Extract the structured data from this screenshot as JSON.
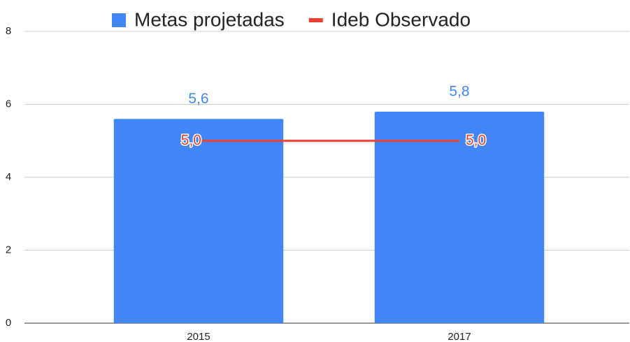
{
  "chart_data": {
    "type": "combo",
    "categories": [
      "2015",
      "2017"
    ],
    "series": [
      {
        "name": "Metas projetadas",
        "type": "bar",
        "color": "#4285f4",
        "values": [
          5.6,
          5.8
        ],
        "value_labels": [
          "5,6",
          "5,8"
        ]
      },
      {
        "name": "Ideb Observado",
        "type": "line",
        "color": "#ea4335",
        "values": [
          5.0,
          5.0
        ],
        "value_labels": [
          "5,0",
          "5,0"
        ]
      }
    ],
    "ylim": [
      0,
      8
    ],
    "yticks": [
      0,
      2,
      4,
      6,
      8
    ],
    "grid": true,
    "legend": "top"
  }
}
